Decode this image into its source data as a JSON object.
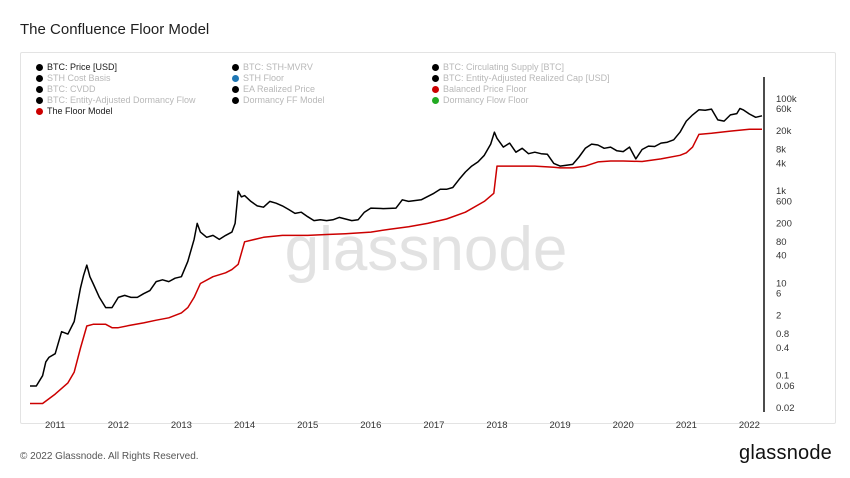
{
  "title": "The Confluence Floor Model",
  "footer": {
    "copyright": "© 2022 Glassnode. All Rights Reserved.",
    "logo": "glassnode"
  },
  "watermark": "glassnode",
  "legend": [
    {
      "label": "BTC: Price [USD]",
      "color": "#000000",
      "active": true
    },
    {
      "label": "BTC: STH-MVRV",
      "color": "#000000",
      "active": false
    },
    {
      "label": "BTC: Circulating Supply [BTC]",
      "color": "#000000",
      "active": false
    },
    {
      "label": "STH Cost Basis",
      "color": "#000000",
      "active": false
    },
    {
      "label": "STH Floor",
      "color": "#1f77b4",
      "active": false
    },
    {
      "label": "BTC: Entity-Adjusted Realized Cap [USD]",
      "color": "#000000",
      "active": false
    },
    {
      "label": "BTC: CVDD",
      "color": "#000000",
      "active": false
    },
    {
      "label": "EA Realized Price",
      "color": "#000000",
      "active": false
    },
    {
      "label": "Balanced Price Floor",
      "color": "#cc0000",
      "active": false
    },
    {
      "label": "BTC: Entity-Adjusted Dormancy Flow",
      "color": "#000000",
      "active": false
    },
    {
      "label": "Dormancy FF Model",
      "color": "#000000",
      "active": false
    },
    {
      "label": "Dormancy Flow Floor",
      "color": "#22aa22",
      "active": false
    },
    {
      "label": "The Floor Model",
      "color": "#cc0000",
      "active": true
    }
  ],
  "chart_data": {
    "type": "line",
    "title": "The Confluence Floor Model",
    "yscale": "log",
    "ylim": [
      0.02,
      200000
    ],
    "xlim": [
      2010.6,
      2022.2
    ],
    "y_tick_labels": [
      "100k",
      "60k",
      "20k",
      "8k",
      "4k",
      "1k",
      "600",
      "200",
      "80",
      "40",
      "10",
      "6",
      "2",
      "0.8",
      "0.4",
      "0.1",
      "0.06",
      "0.02"
    ],
    "y_tick_values": [
      100000,
      60000,
      20000,
      8000,
      4000,
      1000,
      600,
      200,
      80,
      40,
      10,
      6,
      2,
      0.8,
      0.4,
      0.1,
      0.06,
      0.02
    ],
    "x_tick_labels": [
      "2011",
      "2012",
      "2013",
      "2014",
      "2015",
      "2016",
      "2017",
      "2018",
      "2019",
      "2020",
      "2021",
      "2022"
    ],
    "x_tick_values": [
      2011,
      2012,
      2013,
      2014,
      2015,
      2016,
      2017,
      2018,
      2019,
      2020,
      2021,
      2022
    ],
    "grid": false,
    "legend_position": "top-left",
    "series": [
      {
        "name": "BTC: Price [USD]",
        "color": "#000000",
        "x": [
          2010.6,
          2010.7,
          2010.8,
          2010.85,
          2010.9,
          2011.0,
          2011.1,
          2011.2,
          2011.3,
          2011.4,
          2011.45,
          2011.5,
          2011.55,
          2011.6,
          2011.7,
          2011.8,
          2011.9,
          2012.0,
          2012.1,
          2012.2,
          2012.3,
          2012.4,
          2012.5,
          2012.6,
          2012.7,
          2012.8,
          2012.9,
          2013.0,
          2013.1,
          2013.2,
          2013.25,
          2013.3,
          2013.4,
          2013.5,
          2013.6,
          2013.7,
          2013.8,
          2013.85,
          2013.9,
          2013.95,
          2014.0,
          2014.1,
          2014.2,
          2014.3,
          2014.4,
          2014.5,
          2014.6,
          2014.7,
          2014.8,
          2014.9,
          2015.0,
          2015.1,
          2015.2,
          2015.3,
          2015.4,
          2015.5,
          2015.6,
          2015.7,
          2015.8,
          2015.9,
          2016.0,
          2016.2,
          2016.4,
          2016.5,
          2016.6,
          2016.8,
          2017.0,
          2017.1,
          2017.2,
          2017.3,
          2017.4,
          2017.5,
          2017.6,
          2017.7,
          2017.8,
          2017.9,
          2017.96,
          2018.0,
          2018.1,
          2018.2,
          2018.3,
          2018.4,
          2018.5,
          2018.6,
          2018.7,
          2018.8,
          2018.9,
          2019.0,
          2019.2,
          2019.3,
          2019.4,
          2019.5,
          2019.6,
          2019.7,
          2019.8,
          2019.9,
          2020.0,
          2020.1,
          2020.2,
          2020.3,
          2020.4,
          2020.5,
          2020.6,
          2020.7,
          2020.8,
          2020.9,
          2021.0,
          2021.1,
          2021.2,
          2021.3,
          2021.4,
          2021.5,
          2021.6,
          2021.7,
          2021.8,
          2021.85,
          2021.9,
          2022.0,
          2022.1,
          2022.2
        ],
        "y": [
          0.06,
          0.06,
          0.1,
          0.2,
          0.25,
          0.3,
          0.9,
          0.8,
          1.5,
          8,
          15,
          25,
          14,
          10,
          5,
          3,
          3,
          5,
          5.5,
          5,
          5,
          6,
          7,
          11,
          12,
          11,
          13,
          14,
          30,
          90,
          200,
          130,
          100,
          110,
          90,
          110,
          130,
          200,
          1000,
          750,
          800,
          600,
          480,
          450,
          600,
          550,
          480,
          400,
          330,
          350,
          280,
          230,
          240,
          230,
          240,
          270,
          250,
          230,
          240,
          350,
          430,
          420,
          430,
          650,
          600,
          650,
          900,
          1100,
          1100,
          1200,
          1800,
          2600,
          3500,
          4300,
          6000,
          10500,
          19000,
          14000,
          9000,
          11000,
          7000,
          8500,
          6500,
          7000,
          6500,
          6300,
          4000,
          3500,
          3800,
          5500,
          8500,
          10500,
          10000,
          8500,
          9000,
          7500,
          7200,
          9000,
          5000,
          8000,
          9500,
          9300,
          11000,
          11500,
          13000,
          19000,
          33000,
          45000,
          58000,
          57000,
          60000,
          35000,
          33000,
          45000,
          48000,
          62000,
          58000,
          47000,
          40000,
          43000
        ]
      },
      {
        "name": "The Floor Model",
        "color": "#cc0000",
        "x": [
          2010.6,
          2010.8,
          2011.0,
          2011.2,
          2011.3,
          2011.4,
          2011.5,
          2011.6,
          2011.7,
          2011.8,
          2011.9,
          2012.0,
          2012.2,
          2012.4,
          2012.6,
          2012.8,
          2013.0,
          2013.1,
          2013.2,
          2013.3,
          2013.5,
          2013.7,
          2013.8,
          2013.9,
          2014.0,
          2014.3,
          2014.6,
          2015.0,
          2015.3,
          2015.6,
          2016.0,
          2016.3,
          2016.6,
          2016.9,
          2017.2,
          2017.5,
          2017.8,
          2017.95,
          2018.0,
          2018.3,
          2018.6,
          2018.9,
          2019.0,
          2019.2,
          2019.4,
          2019.6,
          2019.8,
          2020.0,
          2020.3,
          2020.6,
          2020.9,
          2021.0,
          2021.1,
          2021.2,
          2021.4,
          2021.7,
          2022.0,
          2022.2
        ],
        "y": [
          0.025,
          0.025,
          0.04,
          0.07,
          0.12,
          0.4,
          1.2,
          1.3,
          1.3,
          1.3,
          1.1,
          1.1,
          1.25,
          1.4,
          1.6,
          1.8,
          2.3,
          3,
          5,
          10,
          14,
          17,
          20,
          26,
          80,
          100,
          110,
          110,
          115,
          120,
          130,
          150,
          170,
          200,
          250,
          350,
          600,
          900,
          3500,
          3500,
          3500,
          3300,
          3200,
          3200,
          3500,
          4300,
          4500,
          4500,
          4400,
          5000,
          6000,
          6800,
          9000,
          17000,
          18000,
          20000,
          22000,
          22000
        ]
      }
    ]
  }
}
